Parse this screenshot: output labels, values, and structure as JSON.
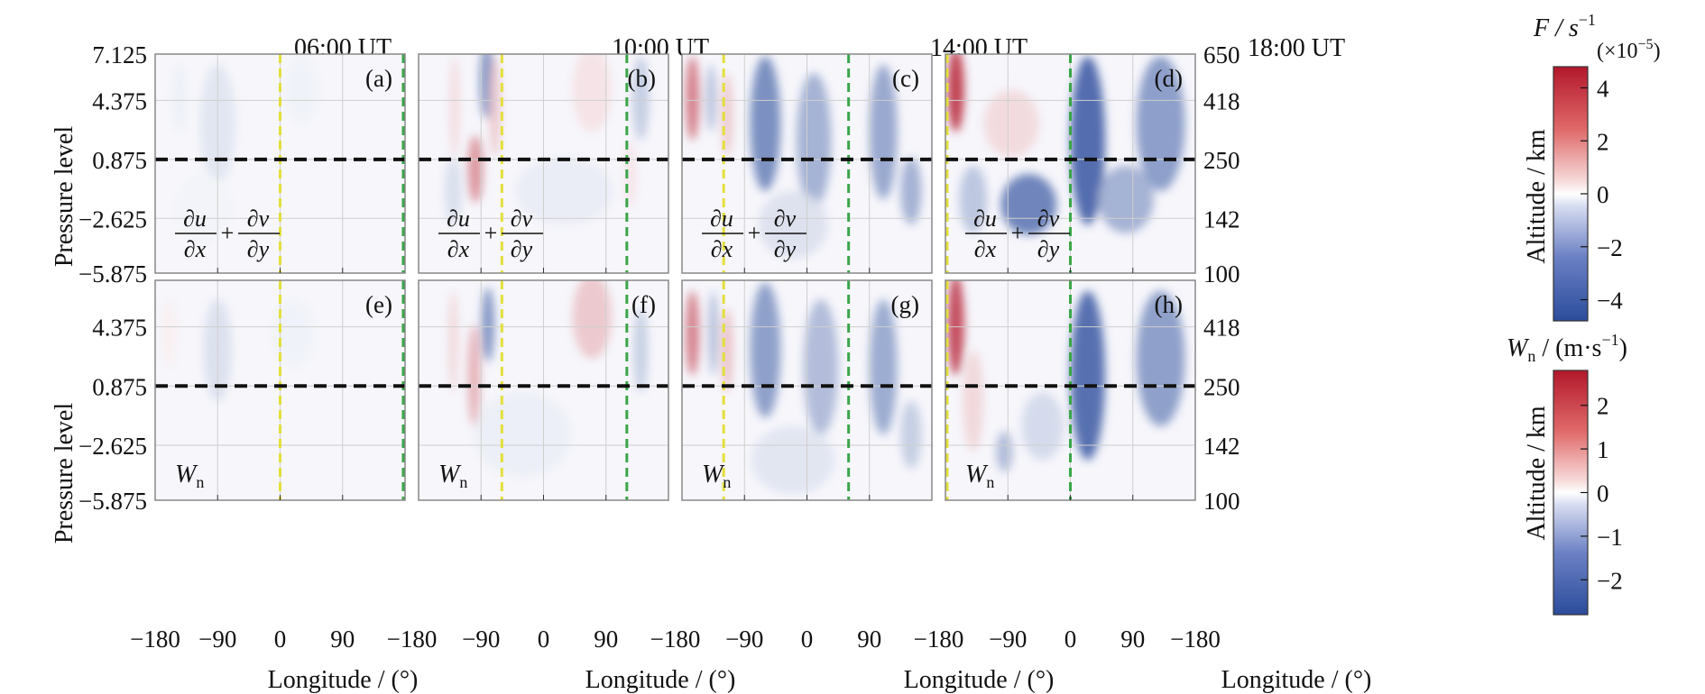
{
  "figure": {
    "times": [
      "06:00 UT",
      "10:00 UT",
      "14:00 UT",
      "18:00 UT"
    ],
    "panel_letters": [
      "(a)",
      "(b)",
      "(c)",
      "(d)",
      "(e)",
      "(f)",
      "(g)",
      "(h)"
    ],
    "y_label_left": "Pressure level",
    "y_label_right": "Altitude / km",
    "x_label": "Longitude / (°)",
    "row_variable_labels": {
      "top": {
        "n1": "∂u",
        "d1": "∂x",
        "plus": "+",
        "n2": "∂v",
        "d2": "∂y"
      },
      "bottom": {
        "main": "W",
        "sub": "n"
      }
    },
    "colorbar_top": {
      "label_main": "F / s",
      "label_sup": "−1",
      "label_scale": "(×10",
      "label_scale_sup": "−5",
      "label_scale_end": ")",
      "range": [
        -4.8,
        4.8
      ],
      "ticks": [
        4,
        2,
        0,
        -2,
        -4
      ],
      "tick_labels": [
        "4",
        "2",
        "0",
        "−2",
        "−4"
      ]
    },
    "colorbar_bottom": {
      "label_main": "W",
      "label_sub": "n",
      "label_rest": " / (m·s",
      "label_sup": "−1",
      "label_end": ")",
      "range": [
        -2.8,
        2.8
      ],
      "ticks": [
        2,
        1,
        0,
        -1,
        -2
      ],
      "tick_labels": [
        "2",
        "1",
        "0",
        "−1",
        "−2"
      ]
    },
    "colors": {
      "positive": "#b2182b",
      "negative": "#2b4c9b",
      "neutral": "#ffffff",
      "subsolar_line": "#e3df3a",
      "midnight_line": "#3aa648",
      "reference_line": "#111111",
      "grid": "#cfcfcf",
      "frame": "#888888"
    }
  },
  "chart_data": {
    "type": "heatmap",
    "x_axis": {
      "label": "Longitude / (°)",
      "range": [
        -180,
        180
      ],
      "ticks": [
        -180,
        -90,
        0,
        90,
        -180
      ],
      "tick_labels": [
        "−180",
        "−90",
        "0",
        "90",
        "−180"
      ]
    },
    "y_axis_left": {
      "label": "Pressure level",
      "range": [
        -5.875,
        7.125
      ],
      "ticks_top_row": [
        7.125,
        4.375,
        0.875,
        -2.625,
        -5.875
      ],
      "tick_labels_top_row": [
        "7.125",
        "4.375",
        "0.875",
        "−2.625",
        "−5.875"
      ],
      "ticks_bottom_row": [
        4.375,
        0.875,
        -2.625,
        -5.875
      ],
      "tick_labels_bottom_row": [
        "4.375",
        "0.875",
        "−2.625",
        "−5.875"
      ]
    },
    "y_axis_right": {
      "label": "Altitude / km",
      "tick_labels_top_row": [
        "650",
        "418",
        "250",
        "142",
        "100"
      ],
      "tick_labels_bottom_row": [
        "418",
        "250",
        "142",
        "100"
      ]
    },
    "reference_pressure_level": 0.875,
    "columns": [
      {
        "time": "06:00 UT",
        "subsolar_longitude": 0,
        "midnight_longitude": 180
      },
      {
        "time": "10:00 UT",
        "subsolar_longitude": -60,
        "midnight_longitude": 120
      },
      {
        "time": "14:00 UT",
        "subsolar_longitude": -120,
        "midnight_longitude": 60
      },
      {
        "time": "18:00 UT",
        "subsolar_longitude": -180,
        "midnight_longitude": 0
      }
    ],
    "panels": [
      {
        "id": "a",
        "variable": "divergence",
        "time": "06:00 UT",
        "features": [
          {
            "lon": -90,
            "p": 3,
            "rlon": 25,
            "rp": 3.5,
            "v": -0.7
          },
          {
            "lon": -145,
            "p": 4.5,
            "rlon": 10,
            "rp": 2,
            "v": -0.4
          },
          {
            "lon": 30,
            "p": 5,
            "rlon": 25,
            "rp": 2,
            "v": -0.35
          },
          {
            "lon": -110,
            "p": -2,
            "rlon": 40,
            "rp": 2,
            "v": -0.3
          }
        ]
      },
      {
        "id": "b",
        "variable": "divergence",
        "time": "10:00 UT",
        "features": [
          {
            "lon": -82,
            "p": 5.5,
            "rlon": 10,
            "rp": 2.2,
            "v": -3
          },
          {
            "lon": -98,
            "p": 0.3,
            "rlon": 11,
            "rp": 2,
            "v": 2.3
          },
          {
            "lon": -128,
            "p": 4,
            "rlon": 7,
            "rp": 3,
            "v": 0.8
          },
          {
            "lon": -70,
            "p": 4,
            "rlon": 8,
            "rp": 3,
            "v": 1.2
          },
          {
            "lon": 70,
            "p": 5,
            "rlon": 28,
            "rp": 2.5,
            "v": 0.6
          },
          {
            "lon": 140,
            "p": 4.5,
            "rlon": 12,
            "rp": 2.5,
            "v": -1.4
          },
          {
            "lon": -130,
            "p": -1,
            "rlon": 12,
            "rp": 2,
            "v": -0.9
          },
          {
            "lon": 30,
            "p": -1,
            "rlon": 70,
            "rp": 2,
            "v": -0.5
          },
          {
            "lon": 125,
            "p": 0,
            "rlon": 8,
            "rp": 2,
            "v": 0.6
          }
        ]
      },
      {
        "id": "c",
        "variable": "divergence",
        "time": "14:00 UT",
        "features": [
          {
            "lon": -165,
            "p": 4.5,
            "rlon": 10,
            "rp": 2.5,
            "v": 2.8
          },
          {
            "lon": -138,
            "p": 4.5,
            "rlon": 7,
            "rp": 2,
            "v": -1.8
          },
          {
            "lon": -115,
            "p": 3.5,
            "rlon": 8,
            "rp": 2.5,
            "v": 1.2
          },
          {
            "lon": -60,
            "p": 3,
            "rlon": 22,
            "rp": 4,
            "v": -3.2
          },
          {
            "lon": 10,
            "p": 2,
            "rlon": 25,
            "rp": 4,
            "v": -2.2
          },
          {
            "lon": 110,
            "p": 2.5,
            "rlon": 20,
            "rp": 4,
            "v": -2.5
          },
          {
            "lon": 150,
            "p": -1,
            "rlon": 15,
            "rp": 2,
            "v": -2.2
          },
          {
            "lon": -20,
            "p": -3,
            "rlon": 50,
            "rp": 2,
            "v": -0.8
          }
        ]
      },
      {
        "id": "d",
        "variable": "divergence",
        "time": "18:00 UT",
        "features": [
          {
            "lon": -165,
            "p": 5,
            "rlon": 12,
            "rp": 2.5,
            "v": 4.2
          },
          {
            "lon": -85,
            "p": 3,
            "rlon": 40,
            "rp": 2,
            "v": 0.8
          },
          {
            "lon": 25,
            "p": 2,
            "rlon": 25,
            "rp": 5,
            "v": -4.2
          },
          {
            "lon": 130,
            "p": 3,
            "rlon": 35,
            "rp": 4,
            "v": -2.8
          },
          {
            "lon": -60,
            "p": -1.8,
            "rlon": 40,
            "rp": 1.8,
            "v": -3.5
          },
          {
            "lon": 80,
            "p": -1.5,
            "rlon": 40,
            "rp": 2,
            "v": -2.2
          },
          {
            "lon": -140,
            "p": -1.5,
            "rlon": 20,
            "rp": 2,
            "v": -1.6
          }
        ]
      },
      {
        "id": "e",
        "variable": "Wn",
        "time": "06:00 UT",
        "features": [
          {
            "lon": -90,
            "p": 3,
            "rlon": 20,
            "rp": 3,
            "v": -0.5
          },
          {
            "lon": -160,
            "p": 4,
            "rlon": 10,
            "rp": 2,
            "v": 0.2
          },
          {
            "lon": 20,
            "p": 4,
            "rlon": 30,
            "rp": 2,
            "v": -0.2
          }
        ]
      },
      {
        "id": "f",
        "variable": "Wn",
        "time": "10:00 UT",
        "features": [
          {
            "lon": -80,
            "p": 4.5,
            "rlon": 9,
            "rp": 2.2,
            "v": -1.8
          },
          {
            "lon": -100,
            "p": 1.5,
            "rlon": 9,
            "rp": 3,
            "v": 1
          },
          {
            "lon": -130,
            "p": 3.5,
            "rlon": 7,
            "rp": 3,
            "v": 0.5
          },
          {
            "lon": 70,
            "p": 5,
            "rlon": 28,
            "rp": 2.5,
            "v": 0.7
          },
          {
            "lon": 140,
            "p": 3,
            "rlon": 10,
            "rp": 2.5,
            "v": -0.8
          },
          {
            "lon": -30,
            "p": -2,
            "rlon": 70,
            "rp": 2.5,
            "v": -0.25
          }
        ]
      },
      {
        "id": "g",
        "variable": "Wn",
        "time": "14:00 UT",
        "features": [
          {
            "lon": -165,
            "p": 4,
            "rlon": 10,
            "rp": 2.5,
            "v": 1.6
          },
          {
            "lon": -135,
            "p": 4,
            "rlon": 6,
            "rp": 2.5,
            "v": -1.2
          },
          {
            "lon": -115,
            "p": 3,
            "rlon": 8,
            "rp": 2.5,
            "v": 0.8
          },
          {
            "lon": -60,
            "p": 3,
            "rlon": 22,
            "rp": 4,
            "v": -1.6
          },
          {
            "lon": 20,
            "p": 2,
            "rlon": 25,
            "rp": 4,
            "v": -1.1
          },
          {
            "lon": 110,
            "p": 2,
            "rlon": 20,
            "rp": 4,
            "v": -1.4
          },
          {
            "lon": 150,
            "p": -2,
            "rlon": 15,
            "rp": 2,
            "v": -0.8
          },
          {
            "lon": -20,
            "p": -3.5,
            "rlon": 60,
            "rp": 2,
            "v": -0.4
          }
        ]
      },
      {
        "id": "h",
        "variable": "Wn",
        "time": "18:00 UT",
        "features": [
          {
            "lon": -165,
            "p": 4.5,
            "rlon": 12,
            "rp": 3,
            "v": 2.3
          },
          {
            "lon": -140,
            "p": 0,
            "rlon": 15,
            "rp": 3,
            "v": 0.5
          },
          {
            "lon": 25,
            "p": 1.5,
            "rlon": 25,
            "rp": 5,
            "v": -2.4
          },
          {
            "lon": 130,
            "p": 2.5,
            "rlon": 35,
            "rp": 4,
            "v": -1.6
          },
          {
            "lon": -95,
            "p": -3,
            "rlon": 12,
            "rp": 1.2,
            "v": -1.1
          },
          {
            "lon": -40,
            "p": -1.5,
            "rlon": 30,
            "rp": 2,
            "v": -0.6
          }
        ]
      }
    ]
  }
}
